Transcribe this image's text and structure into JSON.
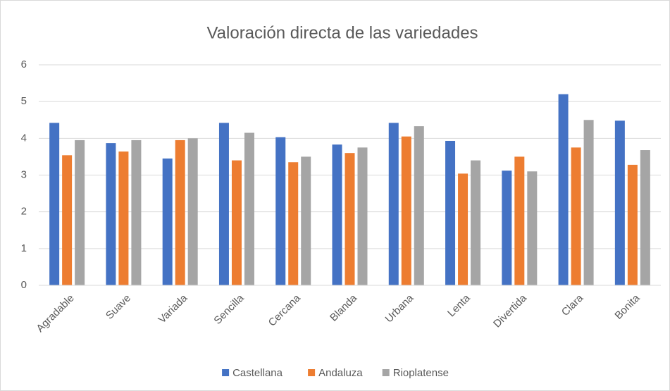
{
  "chart_data": {
    "type": "bar",
    "title": "Valoración directa de las variedades",
    "categories": [
      "Agradable",
      "Suave",
      "Variada",
      "Sencilla",
      "Cercana",
      "Blanda",
      "Urbana",
      "Lenta",
      "Divertida",
      "Clara",
      "Bonita"
    ],
    "series": [
      {
        "name": "Castellana",
        "color": "#4472c4",
        "values": [
          4.42,
          3.87,
          3.45,
          4.42,
          4.03,
          3.83,
          4.42,
          3.93,
          3.12,
          5.2,
          4.48
        ]
      },
      {
        "name": "Andaluza",
        "color": "#ed7d31",
        "values": [
          3.54,
          3.64,
          3.95,
          3.4,
          3.35,
          3.6,
          4.05,
          3.04,
          3.5,
          3.75,
          3.28
        ]
      },
      {
        "name": "Rioplatense",
        "color": "#a5a5a5",
        "values": [
          3.95,
          3.95,
          4.0,
          4.15,
          3.5,
          3.75,
          4.33,
          3.4,
          3.1,
          4.5,
          3.68
        ]
      }
    ],
    "ylim": [
      0,
      6
    ],
    "yticks": [
      0,
      1,
      2,
      3,
      4,
      5,
      6
    ],
    "grid": true,
    "legend": "bottom"
  }
}
